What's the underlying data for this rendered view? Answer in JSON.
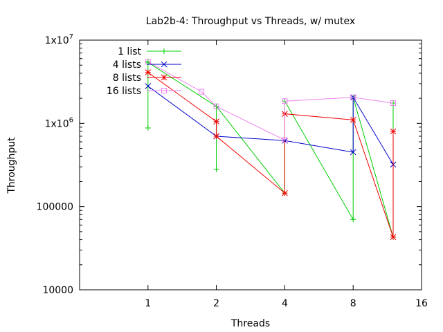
{
  "chart_data": {
    "type": "line",
    "title": "Lab2b-4: Throughput vs Threads, w/ mutex",
    "xlabel": "Threads",
    "ylabel": "Throughput",
    "xscale": "log2",
    "yscale": "log10",
    "xlim": [
      0.5,
      16
    ],
    "ylim": [
      10000,
      10000000
    ],
    "x_ticks": [
      1,
      2,
      4,
      8,
      16
    ],
    "x_tick_labels": [
      "1",
      "2",
      "4",
      "8",
      "16"
    ],
    "y_ticks": [
      10000,
      100000,
      1000000,
      10000000
    ],
    "y_tick_labels": [
      "10000",
      "100000",
      "1x10",
      "1x10"
    ],
    "y_tick_exponents": [
      "",
      "",
      "6",
      "7"
    ],
    "grid": false,
    "legend_position": "top-left",
    "series": [
      {
        "name": "1 list",
        "color": "#00cc00",
        "marker": "plus",
        "points": [
          [
            1,
            5500000
          ],
          [
            1,
            880000
          ],
          [
            1,
            5400000
          ],
          [
            2,
            1600000
          ],
          [
            2,
            280000
          ],
          [
            2,
            1600000
          ],
          [
            4,
            145000
          ],
          [
            4,
            1850000
          ],
          [
            8,
            70000
          ],
          [
            8,
            2050000
          ],
          [
            12,
            43000
          ],
          [
            12,
            1750000
          ]
        ]
      },
      {
        "name": "4 lists",
        "color": "#0000cc",
        "marker": "cross",
        "points": [
          [
            1,
            2800000
          ],
          [
            2,
            700000
          ],
          [
            4,
            620000
          ],
          [
            8,
            450000
          ],
          [
            8,
            2050000
          ],
          [
            12,
            320000
          ]
        ]
      },
      {
        "name": "8 lists",
        "color": "#ee0000",
        "marker": "star",
        "points": [
          [
            1,
            4100000
          ],
          [
            2,
            1050000
          ],
          [
            2,
            700000
          ],
          [
            4,
            145000
          ],
          [
            4,
            1300000
          ],
          [
            8,
            1100000
          ],
          [
            12,
            43000
          ],
          [
            12,
            800000
          ]
        ]
      },
      {
        "name": "16 lists",
        "color": "#ee82ee",
        "marker": "box",
        "points": [
          [
            1,
            5500000
          ],
          [
            1.72,
            2400000
          ],
          [
            2,
            1600000
          ],
          [
            4,
            630000
          ],
          [
            4,
            1850000
          ],
          [
            8,
            2050000
          ],
          [
            12,
            1750000
          ]
        ]
      }
    ]
  }
}
